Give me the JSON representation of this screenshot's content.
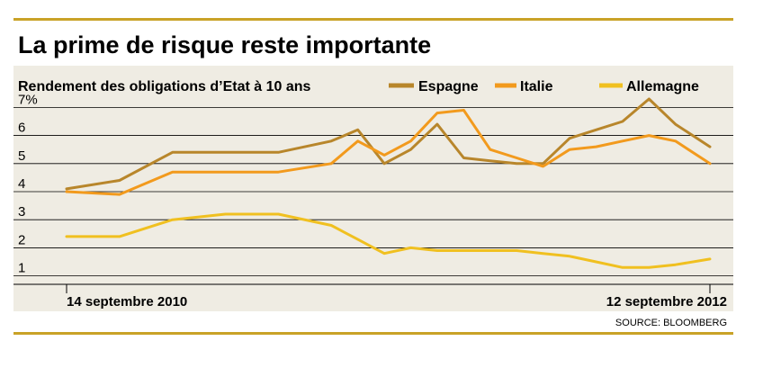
{
  "colors": {
    "accent_rule": "#c9a227",
    "plot_background": "#efece3",
    "grid": "#000000"
  },
  "header": {
    "title": "La prime de risque reste importante"
  },
  "source": "SOURCE: BLOOMBERG",
  "chart_data": {
    "type": "line",
    "title": "La prime de risque reste importante",
    "subtitle": "Rendement des obligations d’Etat à 10 ans",
    "ylim": [
      0.7,
      7.3
    ],
    "yticks": [
      "1",
      "2",
      "3",
      "4",
      "5",
      "6",
      "7%"
    ],
    "ytick_values": [
      1,
      2,
      3,
      4,
      5,
      6,
      7
    ],
    "x_start_label": "14 septembre 2010",
    "x_end_label": "12 septembre 2012",
    "xlim": [
      "2010-09-14",
      "2012-09-12"
    ],
    "grid": true,
    "legend_position": "top",
    "x": [
      "2010-09-14",
      "2010-11-13",
      "2011-01-12",
      "2011-03-13",
      "2011-05-12",
      "2011-07-11",
      "2011-08-10",
      "2011-09-09",
      "2011-10-09",
      "2011-11-08",
      "2011-12-08",
      "2012-01-07",
      "2012-02-06",
      "2012-03-07",
      "2012-04-06",
      "2012-05-06",
      "2012-06-05",
      "2012-07-05",
      "2012-08-04",
      "2012-09-12"
    ],
    "series": [
      {
        "name": "Espagne",
        "color": "#b8862b",
        "values": [
          4.1,
          4.4,
          5.4,
          5.4,
          5.4,
          5.8,
          6.2,
          5.0,
          5.5,
          6.4,
          5.2,
          5.1,
          5.0,
          5.0,
          5.9,
          6.2,
          6.5,
          7.3,
          6.4,
          5.6
        ]
      },
      {
        "name": "Italie",
        "color": "#f29a1d",
        "values": [
          4.0,
          3.9,
          4.7,
          4.7,
          4.7,
          5.0,
          5.8,
          5.3,
          5.8,
          6.8,
          6.9,
          5.5,
          5.2,
          4.9,
          5.5,
          5.6,
          5.8,
          6.0,
          5.8,
          5.0
        ]
      },
      {
        "name": "Allemagne",
        "color": "#f0c020",
        "values": [
          2.4,
          2.4,
          3.0,
          3.2,
          3.2,
          2.8,
          2.3,
          1.8,
          2.0,
          1.9,
          1.9,
          1.9,
          1.9,
          1.8,
          1.7,
          1.5,
          1.3,
          1.3,
          1.4,
          1.6
        ]
      }
    ]
  }
}
